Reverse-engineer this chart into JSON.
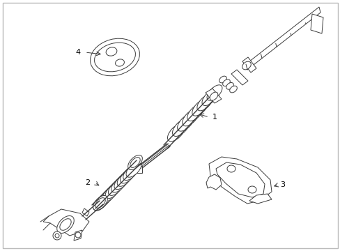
{
  "background_color": "#ffffff",
  "border_color": "#cccccc",
  "line_color": "#3a3a3a",
  "label_color": "#000000",
  "fig_width": 4.89,
  "fig_height": 3.6,
  "dpi": 100
}
